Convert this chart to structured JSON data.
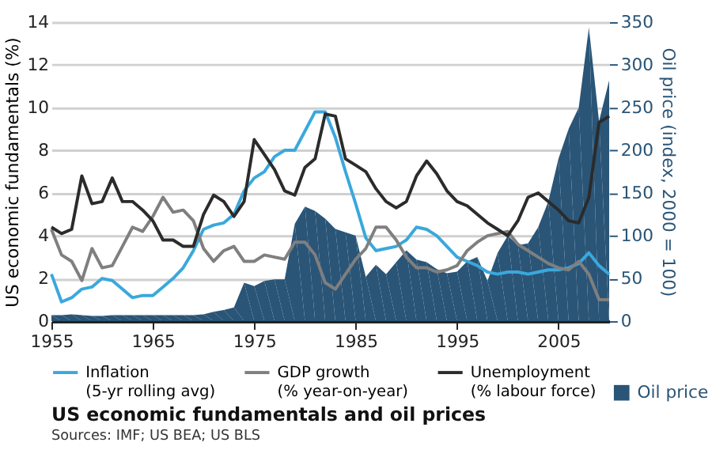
{
  "chart_data": {
    "type": "line",
    "title": "US economic fundamentals and oil prices",
    "annotations": [
      "Sources: IMF; US BEA; US BLS"
    ],
    "ylabel": "US economic fundamentals (%)",
    "y2label": "Oil price (index, 2000 = 100)",
    "x": [
      1955,
      1956,
      1957,
      1958,
      1959,
      1960,
      1961,
      1962,
      1963,
      1964,
      1965,
      1966,
      1967,
      1968,
      1969,
      1970,
      1971,
      1972,
      1973,
      1974,
      1975,
      1976,
      1977,
      1978,
      1979,
      1980,
      1981,
      1982,
      1983,
      1984,
      1985,
      1986,
      1987,
      1988,
      1989,
      1990,
      1991,
      1992,
      1993,
      1994,
      1995,
      1996,
      1997,
      1998,
      1999,
      2000,
      2001,
      2002,
      2003,
      2004,
      2005,
      2006,
      2007,
      2008,
      2009,
      2010
    ],
    "xlim": [
      1955,
      2010
    ],
    "xticks": [
      1955,
      1965,
      1975,
      1985,
      1995,
      2005
    ],
    "ylim": [
      0,
      14
    ],
    "yticks": [
      0,
      2,
      4,
      6,
      8,
      10,
      12,
      14
    ],
    "y2lim": [
      0,
      350
    ],
    "y2ticks": [
      0,
      50,
      100,
      150,
      200,
      250,
      300,
      350
    ],
    "grid": "y",
    "legend": "bottom",
    "series": [
      {
        "name": "Oil price",
        "type": "area",
        "axis": "y2",
        "color": "#2a5577",
        "values": [
          7,
          7,
          8,
          7,
          6,
          6,
          7,
          7,
          7,
          7,
          7,
          7,
          7,
          7,
          7,
          8,
          11,
          13,
          16,
          45,
          41,
          47,
          49,
          49,
          114,
          134,
          129,
          120,
          108,
          104,
          100,
          52,
          66,
          55,
          69,
          83,
          72,
          69,
          61,
          56,
          58,
          70,
          75,
          47,
          80,
          100,
          89,
          91,
          110,
          140,
          190,
          225,
          250,
          344,
          234,
          282
        ]
      },
      {
        "name": "Inflation (5-yr rolling avg)",
        "color": "#3aa8dc",
        "values": [
          2.2,
          0.9,
          1.1,
          1.5,
          1.6,
          2.0,
          1.9,
          1.5,
          1.1,
          1.2,
          1.2,
          1.6,
          2.0,
          2.5,
          3.3,
          4.3,
          4.5,
          4.6,
          5.0,
          6.1,
          6.7,
          7.0,
          7.7,
          8.0,
          8.0,
          8.9,
          9.8,
          9.8,
          8.6,
          7.0,
          5.5,
          3.9,
          3.3,
          3.4,
          3.5,
          3.8,
          4.4,
          4.3,
          4.0,
          3.5,
          3.0,
          2.8,
          2.6,
          2.3,
          2.2,
          2.3,
          2.3,
          2.2,
          2.3,
          2.4,
          2.4,
          2.5,
          2.7,
          3.2,
          2.6,
          2.2
        ]
      },
      {
        "name": "GDP growth (% year-on-year)",
        "color": "#7f7f7f",
        "values": [
          4.3,
          3.1,
          2.8,
          1.9,
          3.4,
          2.5,
          2.6,
          3.5,
          4.4,
          4.2,
          4.9,
          5.8,
          5.1,
          5.2,
          4.7,
          3.4,
          2.8,
          3.3,
          3.5,
          2.8,
          2.8,
          3.1,
          3.0,
          2.9,
          3.7,
          3.7,
          3.1,
          1.8,
          1.5,
          2.2,
          2.9,
          3.4,
          4.4,
          4.4,
          3.8,
          3.0,
          2.5,
          2.5,
          2.3,
          2.4,
          2.6,
          3.3,
          3.7,
          4.0,
          4.1,
          4.2,
          3.6,
          3.3,
          3.0,
          2.7,
          2.5,
          2.4,
          2.8,
          2.2,
          1.0,
          1.0
        ]
      },
      {
        "name": "Unemployment (% labour force)",
        "color": "#2b2b2b",
        "values": [
          4.4,
          4.1,
          4.3,
          6.8,
          5.5,
          5.6,
          6.7,
          5.6,
          5.6,
          5.2,
          4.7,
          3.8,
          3.8,
          3.5,
          3.5,
          5.0,
          5.9,
          5.6,
          4.9,
          5.6,
          8.5,
          7.8,
          7.1,
          6.1,
          5.9,
          7.2,
          7.6,
          9.7,
          9.6,
          7.6,
          7.3,
          7.0,
          6.2,
          5.6,
          5.3,
          5.6,
          6.8,
          7.5,
          6.9,
          6.1,
          5.6,
          5.4,
          5.0,
          4.6,
          4.3,
          4.0,
          4.7,
          5.8,
          6.0,
          5.6,
          5.2,
          4.7,
          4.6,
          5.8,
          9.3,
          9.6
        ]
      }
    ]
  }
}
